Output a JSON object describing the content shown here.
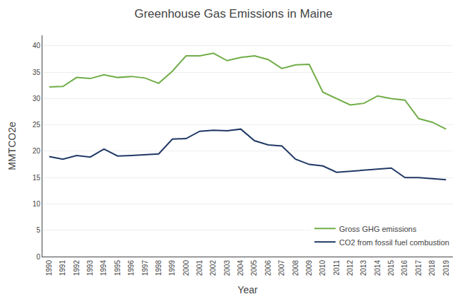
{
  "chart_data": {
    "type": "line",
    "title": "Greenhouse Gas Emissions in Maine",
    "xlabel": "Year",
    "ylabel": "MMTCO2e",
    "x": [
      1990,
      1991,
      1992,
      1993,
      1994,
      1995,
      1996,
      1997,
      1998,
      1999,
      2000,
      2001,
      2002,
      2003,
      2004,
      2005,
      2006,
      2007,
      2008,
      2009,
      2010,
      2011,
      2012,
      2013,
      2014,
      2015,
      2016,
      2017,
      2018,
      2019
    ],
    "series": [
      {
        "name": "Gross GHG emissions",
        "color": "#70AD47",
        "values": [
          32.2,
          32.3,
          34.0,
          33.8,
          34.5,
          34.0,
          34.2,
          33.9,
          32.9,
          35.2,
          38.1,
          38.1,
          38.6,
          37.2,
          37.8,
          38.1,
          37.4,
          35.7,
          36.4,
          36.5,
          31.2,
          30.0,
          28.8,
          29.1,
          30.5,
          30.0,
          29.7,
          26.2,
          25.5,
          24.2
        ]
      },
      {
        "name": "CO2 from fossil fuel combustion",
        "color": "#1F3864",
        "values": [
          19.0,
          18.5,
          19.2,
          18.9,
          20.4,
          19.1,
          19.2,
          19.4,
          19.5,
          22.3,
          22.4,
          23.8,
          24.0,
          23.9,
          24.2,
          22.0,
          21.2,
          21.0,
          18.5,
          17.5,
          17.2,
          16.0,
          16.2,
          16.5,
          16.7,
          16.8,
          15.0,
          15.0,
          14.8,
          14.6
        ]
      }
    ],
    "xlim": [
      1989.5,
      2019.5
    ],
    "xticks": [
      1990,
      1991,
      1992,
      1993,
      1994,
      1995,
      1996,
      1997,
      1998,
      1999,
      2000,
      2001,
      2002,
      2003,
      2004,
      2005,
      2006,
      2007,
      2008,
      2009,
      2010,
      2011,
      2012,
      2013,
      2014,
      2015,
      2016,
      2017,
      2018,
      2019
    ],
    "ylim": [
      0,
      42
    ],
    "yticks": [
      0,
      5,
      10,
      15,
      20,
      25,
      30,
      35,
      40
    ],
    "grid": "y",
    "legend": "lower right"
  }
}
